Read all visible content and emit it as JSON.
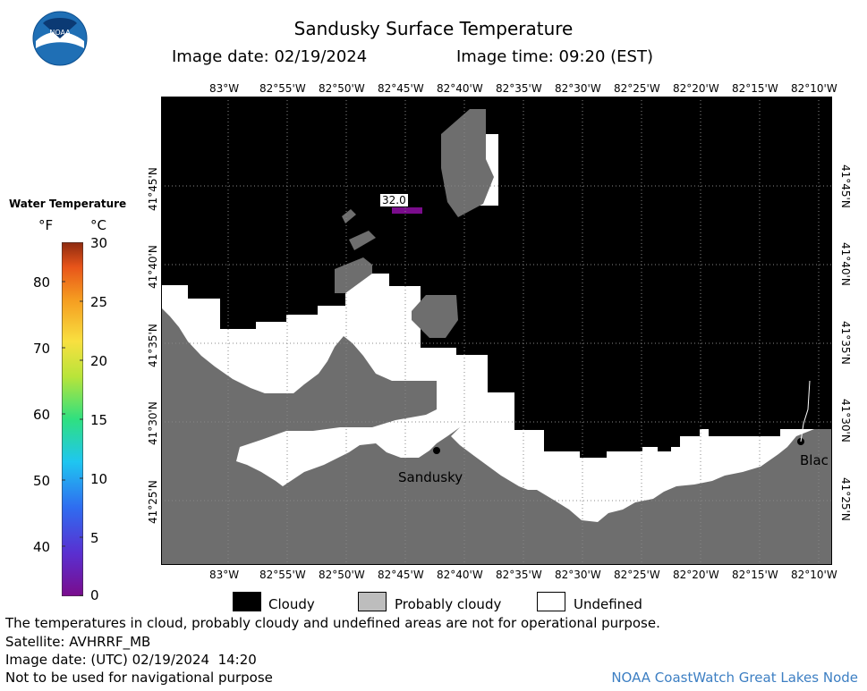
{
  "header": {
    "title": "Sandusky Surface Temperature",
    "image_date": "Image date: 02/19/2024",
    "image_time": "Image time: 09:20 (EST)"
  },
  "logo": {
    "text": "NOAA"
  },
  "map": {
    "lon_labels": [
      "83°W",
      "82°55'W",
      "82°50'W",
      "82°45'W",
      "82°40'W",
      "82°35'W",
      "82°30'W",
      "82°25'W",
      "82°20'W",
      "82°15'W",
      "82°10'W"
    ],
    "lat_labels": [
      "41°45'N",
      "41°40'N",
      "41°35'N",
      "41°30'N",
      "41°25'N"
    ],
    "temperature_tag": "32.0",
    "places": [
      {
        "name": "Sandusky"
      },
      {
        "name": "Blac"
      }
    ],
    "colors": {
      "cloudy": "#000000",
      "probably_cloudy": "#6e6e6e",
      "land": "#6e6e6e",
      "undefined": "#ffffff",
      "sample_pixel": "#7a0c8c"
    }
  },
  "legend": {
    "title": "Water Temperature",
    "unit_f": "°F",
    "unit_c": "°C",
    "f_ticks": [
      "80",
      "70",
      "60",
      "50",
      "40"
    ],
    "c_ticks": [
      "30",
      "25",
      "20",
      "15",
      "10",
      "5",
      "0"
    ]
  },
  "key": {
    "cloudy": "Cloudy",
    "probably_cloudy": "Probably cloudy",
    "undefined": "Undefined"
  },
  "footer": {
    "disclaimer": "The temperatures in cloud, probably cloudy and undefined areas are not for operational purpose.",
    "satellite": "Satellite: AVHRRF_MB",
    "utc_date": "Image date: (UTC) 02/19/2024  14:20",
    "navigation": "Not to be used for navigational purpose",
    "node": "NOAA CoastWatch Great Lakes Node"
  }
}
